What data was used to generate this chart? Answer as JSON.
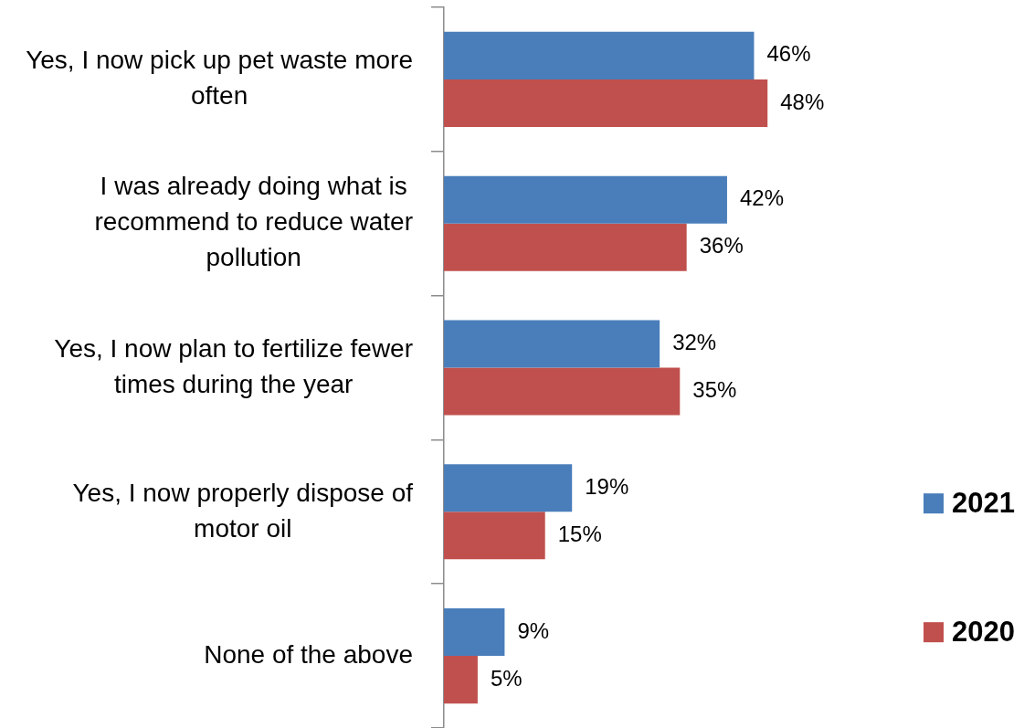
{
  "chart_data": {
    "type": "bar",
    "orientation": "horizontal",
    "categories": [
      "Yes, I now pick up pet waste more often",
      "I was already doing what is recommend to reduce water pollution",
      "Yes, I now plan to fertilize fewer times during the year",
      "Yes, I now properly dispose of motor oil",
      "None of the above"
    ],
    "series": [
      {
        "name": "2021",
        "color": "#4a7ebb",
        "values": [
          46,
          42,
          32,
          19,
          9
        ],
        "value_labels": [
          "46%",
          "42%",
          "32%",
          "19%",
          "9%"
        ]
      },
      {
        "name": "2020",
        "color": "#c0504d",
        "values": [
          48,
          36,
          35,
          15,
          5
        ],
        "value_labels": [
          "48%",
          "36%",
          "35%",
          "15%",
          "5%"
        ]
      }
    ],
    "tick_labels": "y",
    "legend": "right"
  }
}
